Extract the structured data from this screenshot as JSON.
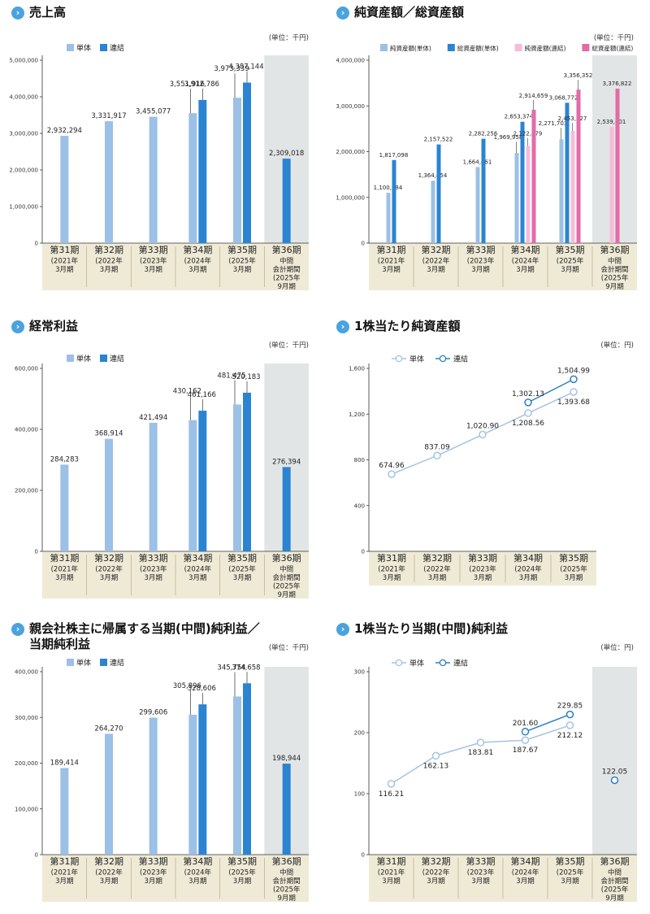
{
  "colors": {
    "tan": "#efead6",
    "shade": "#e2e5e6",
    "tan_line": "#b9ab85",
    "single": "#9cc0e6",
    "consol": "#2b84d2",
    "pink_light": "#f5bcd8",
    "pink": "#e36ba7",
    "line_single": "#a3c4e6",
    "line_consol": "#2d7fc7",
    "title_icon": "#4aa3df"
  },
  "icons": {
    "title": "chevron-right-icon"
  },
  "charts": [
    {
      "title": "売上高",
      "unit": "(単位：千円)",
      "legend": [
        "単体",
        "連結"
      ],
      "categories": [
        [
          "第31期",
          "(2021年",
          "3月期"
        ],
        [
          "第32期",
          "(2022年",
          "3月期"
        ],
        [
          "第33期",
          "(2023年",
          "3月期"
        ],
        [
          "第34期",
          "(2024年",
          "3月期"
        ],
        [
          "第35期",
          "(2025年",
          "3月期"
        ],
        [
          "第36期",
          "中間",
          "会計期間",
          "(2025年",
          "9月期"
        ]
      ],
      "y_ticks": [
        "0",
        "1,000,000",
        "2,000,000",
        "3,000,000",
        "4,000,000",
        "5,000,000"
      ],
      "single_labels": [
        "2,932,294",
        "3,331,917",
        "3,455,077",
        "3,551,916",
        "3,973,339",
        ""
      ],
      "consol_labels": [
        "",
        "",
        "",
        "3,912,786",
        "4,387,144",
        "2,309,018"
      ]
    },
    {
      "title": "純資産額／総資産額",
      "unit": "(単位：千円)",
      "legend": [
        "純資産額(単体)",
        "総資産額(単体)",
        "純資産額(連結)",
        "総資産額(連結)"
      ],
      "categories": [
        [
          "第31期",
          "(2021年",
          "3月期"
        ],
        [
          "第32期",
          "(2022年",
          "3月期"
        ],
        [
          "第33期",
          "(2023年",
          "3月期"
        ],
        [
          "第34期",
          "(2024年",
          "3月期"
        ],
        [
          "第35期",
          "(2025年",
          "3月期"
        ],
        [
          "第36期",
          "中間",
          "会計期間",
          "(2025年",
          "9月期"
        ]
      ],
      "y_ticks": [
        "0",
        "1,000,000",
        "2,000,000",
        "3,000,000",
        "4,000,000"
      ],
      "labels": [
        [
          "1,100,184",
          "1,364,454",
          "1,664,061",
          "1,969,958",
          "2,271,703",
          ""
        ],
        [
          "1,817,098",
          "2,157,522",
          "2,282,256",
          "2,653,374",
          "3,068,772",
          ""
        ],
        [
          "",
          "",
          "",
          "2,122,479",
          "2,453,127",
          "2,539,601"
        ],
        [
          "",
          "",
          "",
          "2,914,659",
          "3,356,352",
          "3,376,822"
        ]
      ]
    },
    {
      "title": "経常利益",
      "unit": "(単位：千円)",
      "legend": [
        "単体",
        "連結"
      ],
      "categories": [
        [
          "第31期",
          "(2021年",
          "3月期"
        ],
        [
          "第32期",
          "(2022年",
          "3月期"
        ],
        [
          "第33期",
          "(2023年",
          "3月期"
        ],
        [
          "第34期",
          "(2024年",
          "3月期"
        ],
        [
          "第35期",
          "(2025年",
          "3月期"
        ],
        [
          "第36期",
          "中間",
          "会計期間",
          "(2025年",
          "9月期"
        ]
      ],
      "y_ticks": [
        "0",
        "200,000",
        "400,000",
        "600,000"
      ],
      "single_labels": [
        "284,283",
        "368,914",
        "421,494",
        "430,162",
        "481,475",
        ""
      ],
      "consol_labels": [
        "",
        "",
        "",
        "461,166",
        "520,183",
        "276,394"
      ]
    },
    {
      "title": "1株当たり純資産額",
      "unit": "(単位：円)",
      "legend": [
        "単体",
        "連結"
      ],
      "categories": [
        [
          "第31期",
          "(2021年",
          "3月期"
        ],
        [
          "第32期",
          "(2022年",
          "3月期"
        ],
        [
          "第33期",
          "(2023年",
          "3月期"
        ],
        [
          "第34期",
          "(2024年",
          "3月期"
        ],
        [
          "第35期",
          "(2025年",
          "3月期"
        ]
      ],
      "y_ticks": [
        "0",
        "400",
        "800",
        "1,200",
        "1,600"
      ],
      "single_labels": [
        "674.96",
        "837.09",
        "1,020.90",
        "1,208.56",
        "1,393.68"
      ],
      "consol_labels": [
        "",
        "",
        "",
        "1,302.13",
        "1,504.99"
      ]
    },
    {
      "title": "親会社株主に帰属する当期(中間)純利益／\n当期純利益",
      "unit": "(単位：千円)",
      "legend": [
        "単体",
        "連結"
      ],
      "categories": [
        [
          "第31期",
          "(2021年",
          "3月期"
        ],
        [
          "第32期",
          "(2022年",
          "3月期"
        ],
        [
          "第33期",
          "(2023年",
          "3月期"
        ],
        [
          "第34期",
          "(2024年",
          "3月期"
        ],
        [
          "第35期",
          "(2025年",
          "3月期"
        ],
        [
          "第36期",
          "中間",
          "会計期間",
          "(2025年",
          "9月期"
        ]
      ],
      "y_ticks": [
        "0",
        "100,000",
        "200,000",
        "300,000",
        "400,000"
      ],
      "single_labels": [
        "189,414",
        "264,270",
        "299,606",
        "305,896",
        "345,754",
        ""
      ],
      "consol_labels": [
        "",
        "",
        "",
        "328,606",
        "374,658",
        "198,944"
      ]
    },
    {
      "title": "1株当たり当期(中間)純利益",
      "unit": "(単位：円)",
      "legend": [
        "単体",
        "連結"
      ],
      "categories": [
        [
          "第31期",
          "(2021年",
          "3月期"
        ],
        [
          "第32期",
          "(2022年",
          "3月期"
        ],
        [
          "第33期",
          "(2023年",
          "3月期"
        ],
        [
          "第34期",
          "(2024年",
          "3月期"
        ],
        [
          "第35期",
          "(2025年",
          "3月期"
        ],
        [
          "第36期",
          "中間",
          "会計期間",
          "(2025年",
          "9月期"
        ]
      ],
      "y_ticks": [
        "0",
        "100",
        "200",
        "300"
      ],
      "single_labels": [
        "116.21",
        "162.13",
        "183.81",
        "187.67",
        "212.12",
        ""
      ],
      "consol_labels": [
        "",
        "",
        "",
        "201.60",
        "229.85",
        "122.05"
      ]
    }
  ],
  "chart_data": [
    {
      "type": "bar",
      "title": "売上高",
      "ylim": [
        0,
        5000000
      ],
      "categories": [
        "第31期",
        "第32期",
        "第33期",
        "第34期",
        "第35期",
        "第36期"
      ],
      "series": [
        {
          "name": "単体",
          "values": [
            2932294,
            3331917,
            3455077,
            3551916,
            3973339,
            null
          ]
        },
        {
          "name": "連結",
          "values": [
            null,
            null,
            null,
            3912786,
            4387144,
            2309018
          ]
        }
      ]
    },
    {
      "type": "bar",
      "title": "純資産額／総資産額",
      "ylim": [
        0,
        4000000
      ],
      "categories": [
        "第31期",
        "第32期",
        "第33期",
        "第34期",
        "第35期",
        "第36期"
      ],
      "series": [
        {
          "name": "純資産額(単体)",
          "values": [
            1100184,
            1364454,
            1664061,
            1969958,
            2271703,
            null
          ]
        },
        {
          "name": "総資産額(単体)",
          "values": [
            1817098,
            2157522,
            2282256,
            2653374,
            3068772,
            null
          ]
        },
        {
          "name": "純資産額(連結)",
          "values": [
            null,
            null,
            null,
            2122479,
            2453127,
            2539601
          ]
        },
        {
          "name": "総資産額(連結)",
          "values": [
            null,
            null,
            null,
            2914659,
            3356352,
            3376822
          ]
        }
      ]
    },
    {
      "type": "bar",
      "title": "経常利益",
      "ylim": [
        0,
        600000
      ],
      "categories": [
        "第31期",
        "第32期",
        "第33期",
        "第34期",
        "第35期",
        "第36期"
      ],
      "series": [
        {
          "name": "単体",
          "values": [
            284283,
            368914,
            421494,
            430162,
            481475,
            null
          ]
        },
        {
          "name": "連結",
          "values": [
            null,
            null,
            null,
            461166,
            520183,
            276394
          ]
        }
      ]
    },
    {
      "type": "line",
      "title": "1株当たり純資産額",
      "ylim": [
        0,
        1600
      ],
      "categories": [
        "第31期",
        "第32期",
        "第33期",
        "第34期",
        "第35期"
      ],
      "series": [
        {
          "name": "単体",
          "values": [
            674.96,
            837.09,
            1020.9,
            1208.56,
            1393.68
          ]
        },
        {
          "name": "連結",
          "values": [
            null,
            null,
            null,
            1302.13,
            1504.99
          ]
        }
      ]
    },
    {
      "type": "bar",
      "title": "親会社株主に帰属する当期(中間)純利益／当期純利益",
      "ylim": [
        0,
        400000
      ],
      "categories": [
        "第31期",
        "第32期",
        "第33期",
        "第34期",
        "第35期",
        "第36期"
      ],
      "series": [
        {
          "name": "単体",
          "values": [
            189414,
            264270,
            299606,
            305896,
            345754,
            null
          ]
        },
        {
          "name": "連結",
          "values": [
            null,
            null,
            null,
            328606,
            374658,
            198944
          ]
        }
      ]
    },
    {
      "type": "line",
      "title": "1株当たり当期(中間)純利益",
      "ylim": [
        0,
        300
      ],
      "categories": [
        "第31期",
        "第32期",
        "第33期",
        "第34期",
        "第35期",
        "第36期"
      ],
      "series": [
        {
          "name": "単体",
          "values": [
            116.21,
            162.13,
            183.81,
            187.67,
            212.12,
            null
          ]
        },
        {
          "name": "連結",
          "values": [
            null,
            null,
            null,
            201.6,
            229.85,
            122.05
          ]
        }
      ]
    }
  ]
}
